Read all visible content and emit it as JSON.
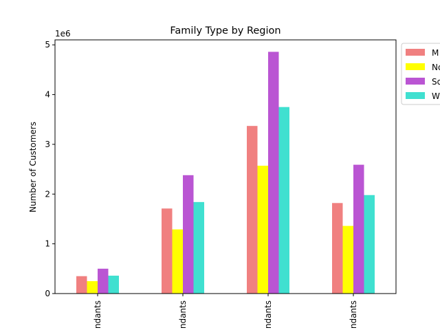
{
  "chart_data": {
    "type": "bar",
    "title": "Family Type by Region",
    "xlabel": "",
    "ylabel": "Number of Customers",
    "y_multiplier_label": "1e6",
    "y_multiplier": 1000000,
    "ylim": [
      0,
      5100000
    ],
    "y_ticks": [
      0,
      1000000,
      2000000,
      3000000,
      4000000,
      5000000
    ],
    "y_tick_labels": [
      "0",
      "1",
      "2",
      "3",
      "4",
      "5"
    ],
    "grid": false,
    "legend_placement": "top-right, outside plot",
    "categories": [
      "ndants",
      "ndants",
      "ndants",
      "ndants"
    ],
    "series": [
      {
        "name": "M",
        "color": "#f08080",
        "values": [
          350000,
          1710000,
          3370000,
          1820000
        ]
      },
      {
        "name": "No",
        "color": "#ffff00",
        "values": [
          250000,
          1290000,
          2570000,
          1360000
        ]
      },
      {
        "name": "So",
        "color": "#ba55d3",
        "values": [
          500000,
          2380000,
          4860000,
          2590000
        ]
      },
      {
        "name": "W",
        "color": "#40e0d0",
        "values": [
          360000,
          1840000,
          3750000,
          1980000
        ]
      }
    ]
  }
}
